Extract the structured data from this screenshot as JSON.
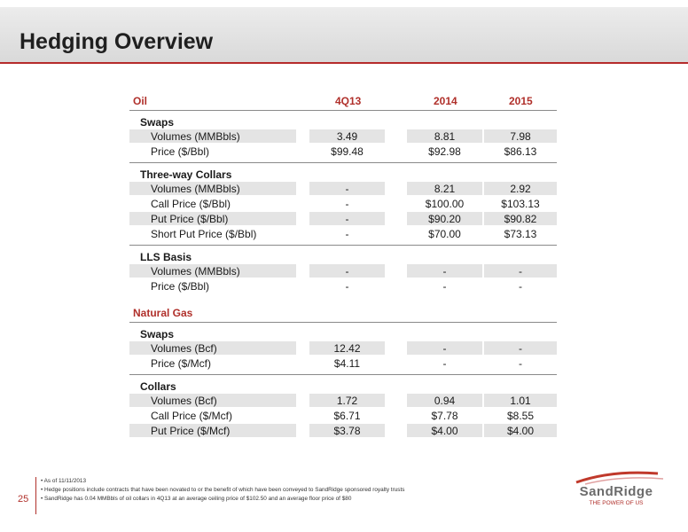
{
  "header": {
    "title": "Hedging Overview"
  },
  "table": {
    "col_label": "Oil",
    "columns": [
      "4Q13",
      "2014",
      "2015"
    ],
    "oil": {
      "swaps": {
        "title": "Swaps",
        "rows": [
          {
            "label": "Volumes (MMBbls)",
            "v": [
              "3.49",
              "8.81",
              "7.98"
            ]
          },
          {
            "label": "Price  ($/Bbl)",
            "v": [
              "$99.48",
              "$92.98",
              "$86.13"
            ]
          }
        ]
      },
      "collars": {
        "title": "Three-way Collars",
        "rows": [
          {
            "label": "Volumes (MMBbls)",
            "v": [
              "-",
              "8.21",
              "2.92"
            ]
          },
          {
            "label": "Call Price ($/Bbl)",
            "v": [
              "-",
              "$100.00",
              "$103.13"
            ]
          },
          {
            "label": "Put Price ($/Bbl)",
            "v": [
              "-",
              "$90.20",
              "$90.82"
            ]
          },
          {
            "label": "Short Put Price ($/Bbl)",
            "v": [
              "-",
              "$70.00",
              "$73.13"
            ]
          }
        ]
      },
      "lls": {
        "title": "LLS Basis",
        "rows": [
          {
            "label": "Volumes (MMBbls)",
            "v": [
              "-",
              "-",
              "-"
            ]
          },
          {
            "label": "Price  ($/Bbl)",
            "v": [
              "-",
              "-",
              "-"
            ]
          }
        ]
      }
    },
    "gas_label": "Natural Gas",
    "gas": {
      "swaps": {
        "title": "Swaps",
        "rows": [
          {
            "label": "Volumes (Bcf)",
            "v": [
              "12.42",
              "-",
              "-"
            ]
          },
          {
            "label": "Price ($/Mcf)",
            "v": [
              "$4.11",
              "-",
              "-"
            ]
          }
        ]
      },
      "collars": {
        "title": "Collars",
        "rows": [
          {
            "label": "Volumes (Bcf)",
            "v": [
              "1.72",
              "0.94",
              "1.01"
            ]
          },
          {
            "label": "Call Price ($/Mcf)",
            "v": [
              "$6.71",
              "$7.78",
              "$8.55"
            ]
          },
          {
            "label": "Put Price ($/Mcf)",
            "v": [
              "$3.78",
              "$4.00",
              "$4.00"
            ]
          }
        ]
      }
    }
  },
  "footer": {
    "page": "25",
    "notes": [
      "• As of 11/11/2013",
      "• Hedge positions include contracts that have been novated to or the benefit of which have been conveyed to SandRidge sponsored royalty trusts",
      "• SandRidge has 0.04 MMBbls of oil collars in 4Q13 at an average ceiling price of $102.50 and an average floor price of $80"
    ],
    "logo_text": "SandRidge",
    "logo_tag": "THE POWER OF US"
  }
}
